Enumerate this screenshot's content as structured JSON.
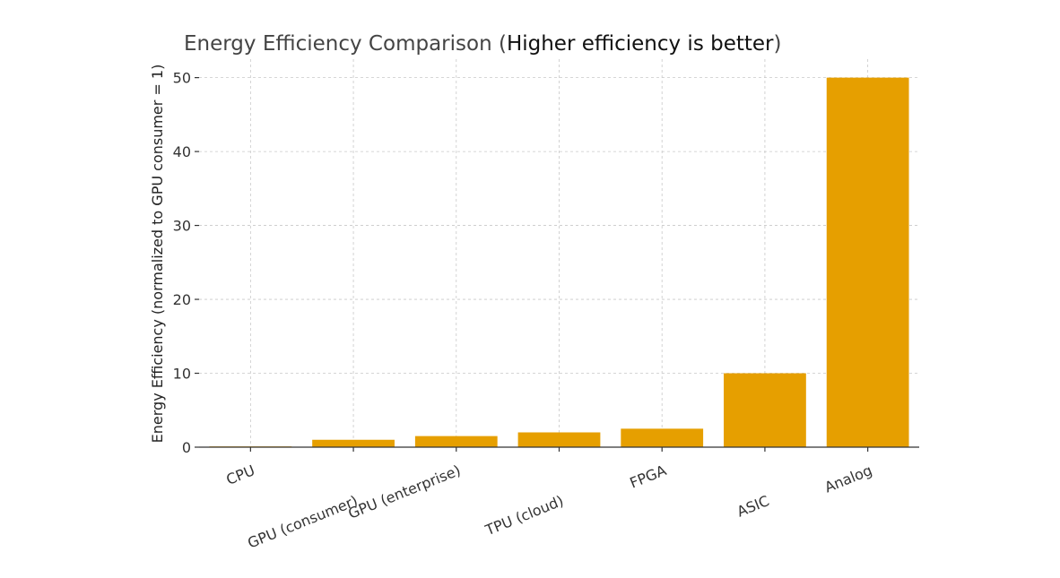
{
  "chart_data": {
    "type": "bar",
    "title_main": "Energy Efficiency Comparison (",
    "title_emphasis": "Higher efficiency is better",
    "title_close": ")",
    "xlabel": "",
    "ylabel": "Energy Efficiency (normalized to GPU consumer = 1)",
    "categories": [
      "CPU",
      "GPU (consumer)",
      "GPU (enterprise)",
      "TPU (cloud)",
      "FPGA",
      "ASIC",
      "Analog"
    ],
    "values": [
      0.1,
      1,
      1.5,
      2,
      2.5,
      10,
      50
    ],
    "ylim": [
      0,
      52.5
    ],
    "yticks": [
      0,
      10,
      20,
      30,
      40,
      50
    ],
    "grid": true,
    "bar_color": "#e69f00"
  }
}
